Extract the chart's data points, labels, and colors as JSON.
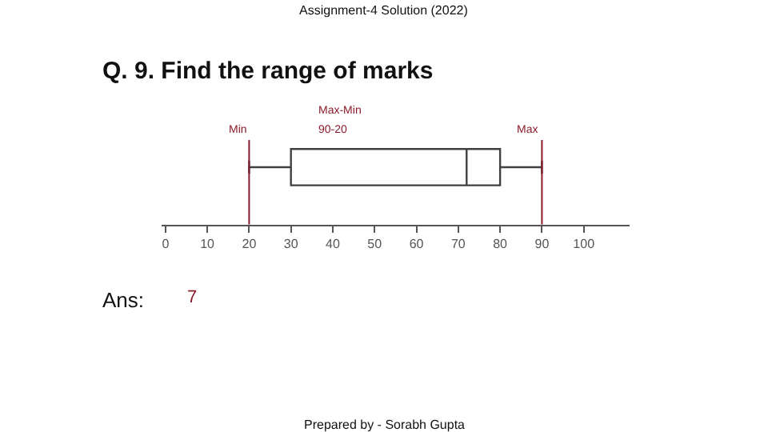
{
  "chart_data": {
    "type": "box",
    "orientation": "horizontal",
    "title": "Q. 9. Find the range of marks",
    "subtitle": "Assignment-4 Solution (2022)",
    "categories": [
      null
    ],
    "series": [
      {
        "color": "#404040",
        "boxes": [
          {
            "low": 20,
            "q1": 30,
            "median": 72,
            "q3": 80,
            "high": 90
          }
        ]
      }
    ],
    "xlim": [
      -1,
      111
    ],
    "xticks": [
      0,
      10,
      20,
      30,
      40,
      50,
      60,
      70,
      80,
      90,
      100
    ],
    "tick_labels": "x",
    "ref_lines": [
      {
        "axis": "x",
        "value": 20,
        "label": "Min",
        "color": "#8b1a2b"
      },
      {
        "axis": "x",
        "value": 90,
        "label": "Max",
        "color": "#8b1a2b"
      }
    ],
    "annotations": [
      "Max-Min",
      "90-20",
      "Ans:",
      "7",
      "Prepared by - Sorabh Gupta"
    ]
  }
}
